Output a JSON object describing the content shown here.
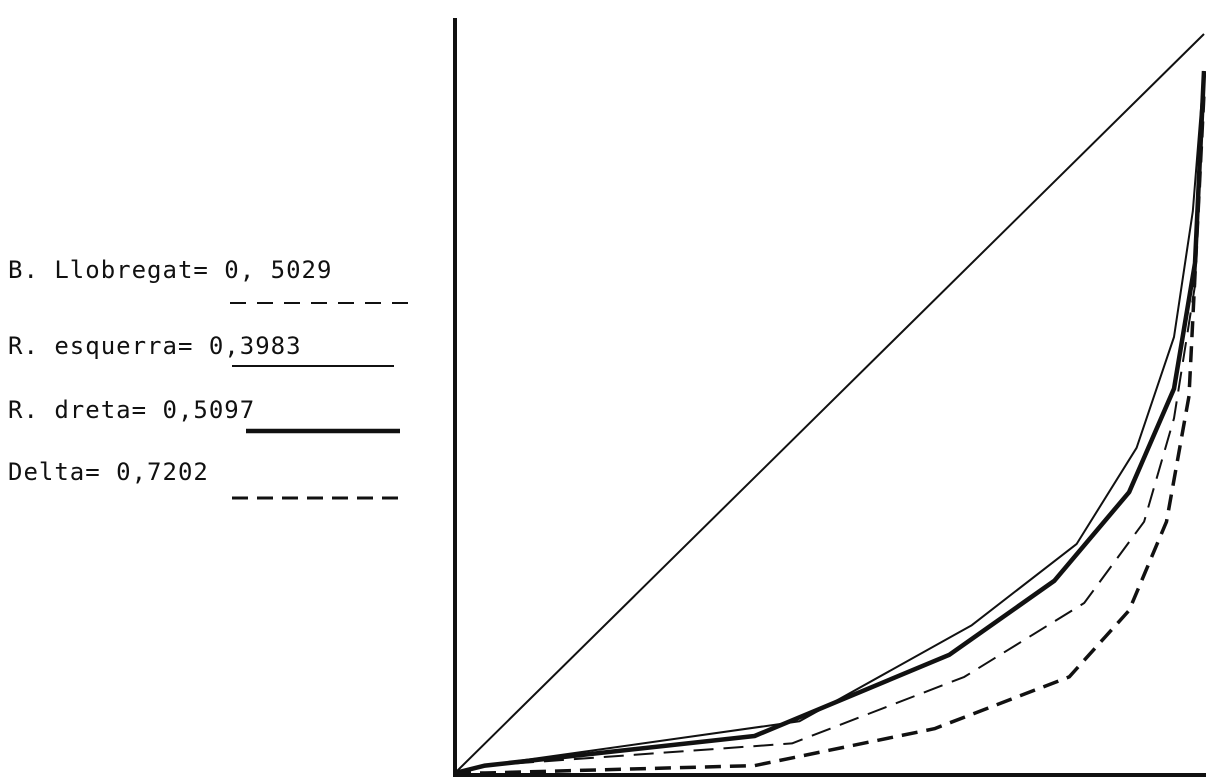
{
  "chart_data": {
    "type": "line",
    "title": "",
    "xlabel": "",
    "ylabel": "",
    "xlim": [
      0,
      1
    ],
    "ylim": [
      0,
      1
    ],
    "grid": false,
    "legend_placement": "left",
    "diagonal": {
      "x": [
        0,
        1
      ],
      "y": [
        0,
        1
      ]
    },
    "series": [
      {
        "name": "B. Llobregat= 0, 5029",
        "x": [
          0,
          0.04,
          0.45,
          0.68,
          0.84,
          0.92,
          0.96,
          0.988,
          1
        ],
        "y": [
          0,
          0.01,
          0.04,
          0.13,
          0.23,
          0.34,
          0.48,
          0.66,
          0.94
        ],
        "style": "dashed-long-thin",
        "color": "#111111"
      },
      {
        "name": "R. esquerra= 0,3983",
        "x": [
          0,
          0.04,
          0.46,
          0.69,
          0.83,
          0.91,
          0.96,
          0.985,
          1
        ],
        "y": [
          0,
          0.01,
          0.07,
          0.2,
          0.31,
          0.44,
          0.59,
          0.76,
          0.95
        ],
        "style": "solid-thin",
        "color": "#111111"
      },
      {
        "name": "R. dreta= 0,5097",
        "x": [
          0,
          0.04,
          0.4,
          0.66,
          0.8,
          0.9,
          0.96,
          0.988,
          1
        ],
        "y": [
          0,
          0.01,
          0.05,
          0.16,
          0.26,
          0.38,
          0.52,
          0.69,
          0.95
        ],
        "style": "solid-thick",
        "color": "#111111"
      },
      {
        "name": "Delta= 0,7202",
        "x": [
          0,
          0.04,
          0.4,
          0.64,
          0.82,
          0.9,
          0.95,
          0.98,
          1
        ],
        "y": [
          0,
          0.0,
          0.01,
          0.06,
          0.13,
          0.22,
          0.34,
          0.51,
          0.92
        ],
        "style": "dashed-thick",
        "color": "#111111"
      }
    ]
  }
}
